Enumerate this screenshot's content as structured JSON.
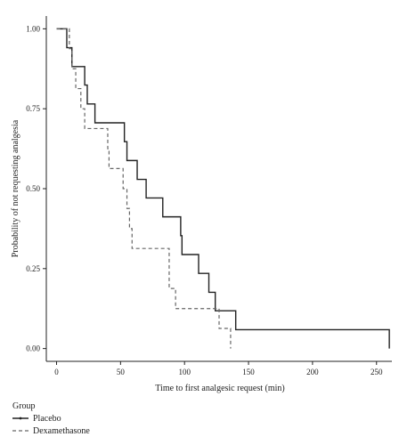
{
  "chart_data": {
    "type": "line",
    "chart_kind": "kaplan-meier step curve",
    "xlabel": "Time to first analgesic request (min)",
    "ylabel": "Probability of not requesting analgesia",
    "xlim": [
      -8,
      262
    ],
    "ylim": [
      -0.04,
      1.04
    ],
    "x_ticks": [
      "0",
      "50",
      "100",
      "150",
      "200",
      "250"
    ],
    "x_tick_values": [
      0,
      50,
      100,
      150,
      200,
      250
    ],
    "y_ticks": [
      "0.00",
      "0.25",
      "0.50",
      "0.75",
      "1.00"
    ],
    "y_tick_values": [
      0,
      0.25,
      0.5,
      0.75,
      1.0
    ],
    "grid": false,
    "legend_title": "Group",
    "legend_position": "bottom-left",
    "series": [
      {
        "name": "Placebo",
        "line_style": "solid",
        "color": "#222222",
        "x": [
          8,
          12,
          22,
          24,
          30,
          53,
          55,
          63,
          70,
          83,
          97,
          98,
          111,
          119,
          124,
          140,
          260
        ],
        "y": [
          0.941,
          0.882,
          0.824,
          0.765,
          0.706,
          0.647,
          0.588,
          0.529,
          0.471,
          0.412,
          0.353,
          0.294,
          0.235,
          0.176,
          0.118,
          0.059,
          0.0
        ]
      },
      {
        "name": "Dexamethasone",
        "line_style": "dashed",
        "color": "#666666",
        "x": [
          10,
          12,
          15,
          19,
          22,
          24,
          40,
          41,
          52,
          55,
          57,
          59,
          88,
          93,
          95,
          127,
          131,
          136
        ],
        "y": [
          0.938,
          0.875,
          0.813,
          0.75,
          0.688,
          0.688,
          0.625,
          0.563,
          0.5,
          0.438,
          0.375,
          0.313,
          0.188,
          0.125,
          0.125,
          0.063,
          0.063,
          0.0
        ]
      }
    ]
  },
  "colors": {
    "axis": "#222222",
    "placebo": "#222222",
    "dexamethasone": "#666666"
  }
}
